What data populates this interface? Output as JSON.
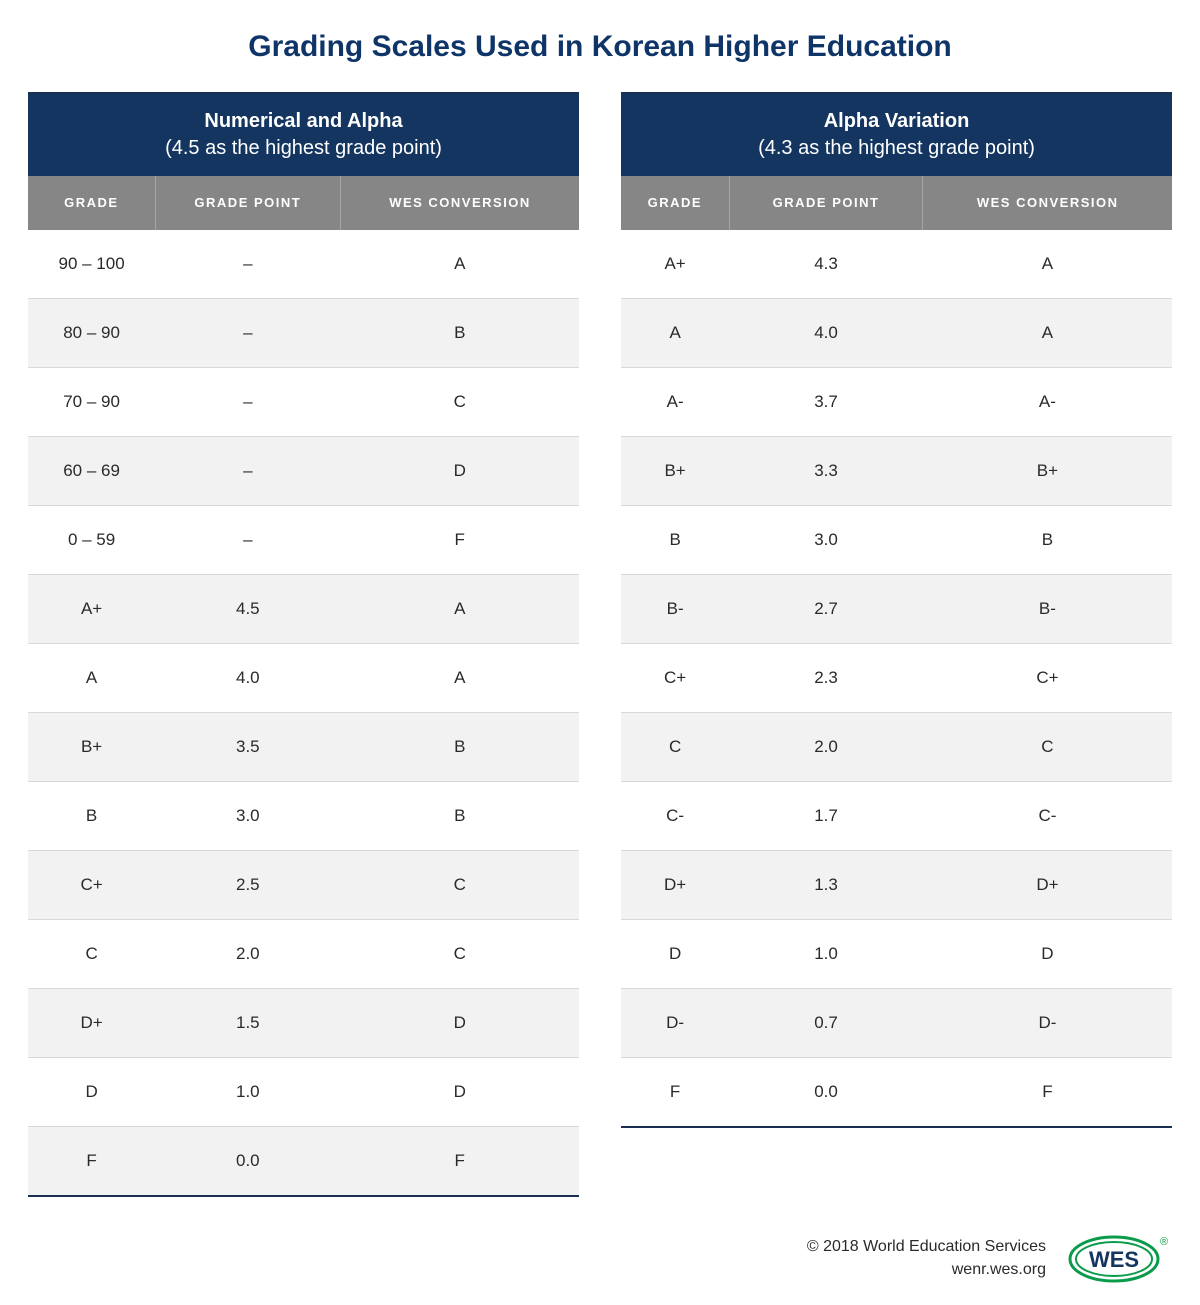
{
  "title": "Grading Scales Used in Korean Higher Education",
  "colors": {
    "title_color": "#0f3568",
    "table_header_bg": "#14355f",
    "col_header_bg": "#868686",
    "row_alt_bg": "#f2f2f2",
    "border_color": "#1a2f52",
    "logo_green": "#0a9b4a"
  },
  "table_left": {
    "title_line1": "Numerical and Alpha",
    "title_line2": "(4.5  as the highest grade point)",
    "columns": [
      "GRADE",
      "GRADE POINT",
      "WES CONVERSION"
    ],
    "rows": [
      [
        "90 – 100",
        "–",
        "A"
      ],
      [
        "80 – 90",
        "–",
        "B"
      ],
      [
        "70 – 90",
        "–",
        "C"
      ],
      [
        "60 – 69",
        "–",
        "D"
      ],
      [
        "0 – 59",
        "–",
        "F"
      ],
      [
        "A+",
        "4.5",
        "A"
      ],
      [
        "A",
        "4.0",
        "A"
      ],
      [
        "B+",
        "3.5",
        "B"
      ],
      [
        "B",
        "3.0",
        "B"
      ],
      [
        "C+",
        "2.5",
        "C"
      ],
      [
        "C",
        "2.0",
        "C"
      ],
      [
        "D+",
        "1.5",
        "D"
      ],
      [
        "D",
        "1.0",
        "D"
      ],
      [
        "F",
        "0.0",
        "F"
      ]
    ]
  },
  "table_right": {
    "title_line1": "Alpha Variation",
    "title_line2": "(4.3 as the highest grade point)",
    "columns": [
      "GRADE",
      "GRADE POINT",
      "WES CONVERSION"
    ],
    "rows": [
      [
        "A+",
        "4.3",
        "A"
      ],
      [
        "A",
        "4.0",
        "A"
      ],
      [
        "A-",
        "3.7",
        "A-"
      ],
      [
        "B+",
        "3.3",
        "B+"
      ],
      [
        "B",
        "3.0",
        "B"
      ],
      [
        "B-",
        "2.7",
        "B-"
      ],
      [
        "C+",
        "2.3",
        "C+"
      ],
      [
        "C",
        "2.0",
        "C"
      ],
      [
        "C-",
        "1.7",
        "C-"
      ],
      [
        "D+",
        "1.3",
        "D+"
      ],
      [
        "D",
        "1.0",
        "D"
      ],
      [
        "D-",
        "0.7",
        "D-"
      ],
      [
        "F",
        "0.0",
        "F"
      ]
    ]
  },
  "footer": {
    "copyright": "© 2018 World Education Services",
    "url": "wenr.wes.org",
    "logo_text": "WES"
  }
}
